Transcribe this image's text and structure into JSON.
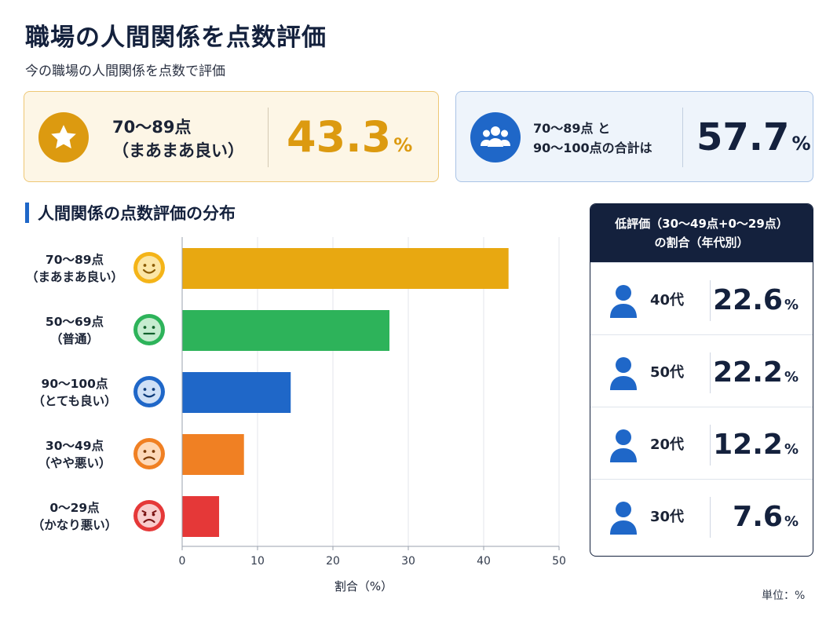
{
  "title": "職場の人間関係を点数評価",
  "subtitle": "今の職場の人間関係を点数で評価",
  "highlight_cards": [
    {
      "label_line1": "70～89点",
      "label_line2": "（まあまあ良い）",
      "value": "43.3",
      "unit": "%",
      "icon": "star-icon",
      "color": "#dc9a10"
    },
    {
      "label_line1": "70～89点 と",
      "label_line2": "90～100点の合計は",
      "value": "57.7",
      "unit": "%",
      "icon": "people-group-icon",
      "color": "#1f67c8"
    }
  ],
  "section_title": "人間関係の点数評価の分布",
  "unit_note": "単位：%",
  "chart_data": {
    "type": "bar",
    "orientation": "horizontal",
    "categories": [
      {
        "line1": "70～89点",
        "line2": "（まあまあ良い）",
        "face": "happy-face-icon",
        "color": "#e8a811"
      },
      {
        "line1": "50～69点",
        "line2": "（普通）",
        "face": "neutral-face-icon",
        "color": "#2db35a"
      },
      {
        "line1": "90～100点",
        "line2": "（とても良い）",
        "face": "smile-face-icon",
        "color": "#1f67c8"
      },
      {
        "line1": "30～49点",
        "line2": "（やや悪い）",
        "face": "frown-face-icon",
        "color": "#f08023"
      },
      {
        "line1": "0～29点",
        "line2": "（かなり悪い）",
        "face": "sad-face-icon",
        "color": "#e53838"
      }
    ],
    "values": [
      43.3,
      27.5,
      14.4,
      8.2,
      4.9
    ],
    "xlabel": "割合（%）",
    "xlim": [
      0,
      50
    ],
    "xticks": [
      0,
      10,
      20,
      30,
      40,
      50
    ],
    "grid": true
  },
  "age_panel": {
    "title_line1": "低評価（30～49点+0～29点）",
    "title_line2": "の割合（年代別）",
    "rows": [
      {
        "age": "40代",
        "value": "22.6",
        "unit": "%"
      },
      {
        "age": "50代",
        "value": "22.2",
        "unit": "%"
      },
      {
        "age": "20代",
        "value": "12.2",
        "unit": "%"
      },
      {
        "age": "30代",
        "value": "7.6",
        "unit": "%"
      }
    ]
  }
}
